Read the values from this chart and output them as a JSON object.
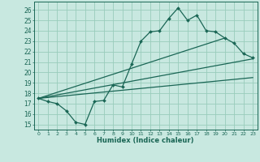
{
  "xlabel": "Humidex (Indice chaleur)",
  "bg_color": "#c8e8e0",
  "grid_color": "#99ccbb",
  "line_color": "#1a6655",
  "xlim": [
    -0.5,
    23.5
  ],
  "ylim": [
    14.5,
    26.8
  ],
  "xticks": [
    0,
    1,
    2,
    3,
    4,
    5,
    6,
    7,
    8,
    9,
    10,
    11,
    12,
    13,
    14,
    15,
    16,
    17,
    18,
    19,
    20,
    21,
    22,
    23
  ],
  "yticks": [
    15,
    16,
    17,
    18,
    19,
    20,
    21,
    22,
    23,
    24,
    25,
    26
  ],
  "main_line_x": [
    0,
    1,
    2,
    3,
    4,
    5,
    6,
    7,
    8,
    9,
    10,
    11,
    12,
    13,
    14,
    15,
    16,
    17,
    18,
    19,
    20,
    21,
    22,
    23
  ],
  "main_line_y": [
    17.5,
    17.2,
    17.0,
    16.3,
    15.2,
    15.0,
    17.2,
    17.3,
    18.8,
    18.6,
    20.8,
    23.0,
    23.9,
    24.0,
    25.2,
    26.2,
    25.0,
    25.5,
    24.0,
    23.9,
    23.3,
    22.8,
    21.8,
    21.4
  ],
  "line1_x": [
    0,
    20
  ],
  "line1_y": [
    17.5,
    23.3
  ],
  "line2_x": [
    0,
    23
  ],
  "line2_y": [
    17.5,
    21.3
  ],
  "line3_x": [
    0,
    23
  ],
  "line3_y": [
    17.5,
    19.5
  ]
}
